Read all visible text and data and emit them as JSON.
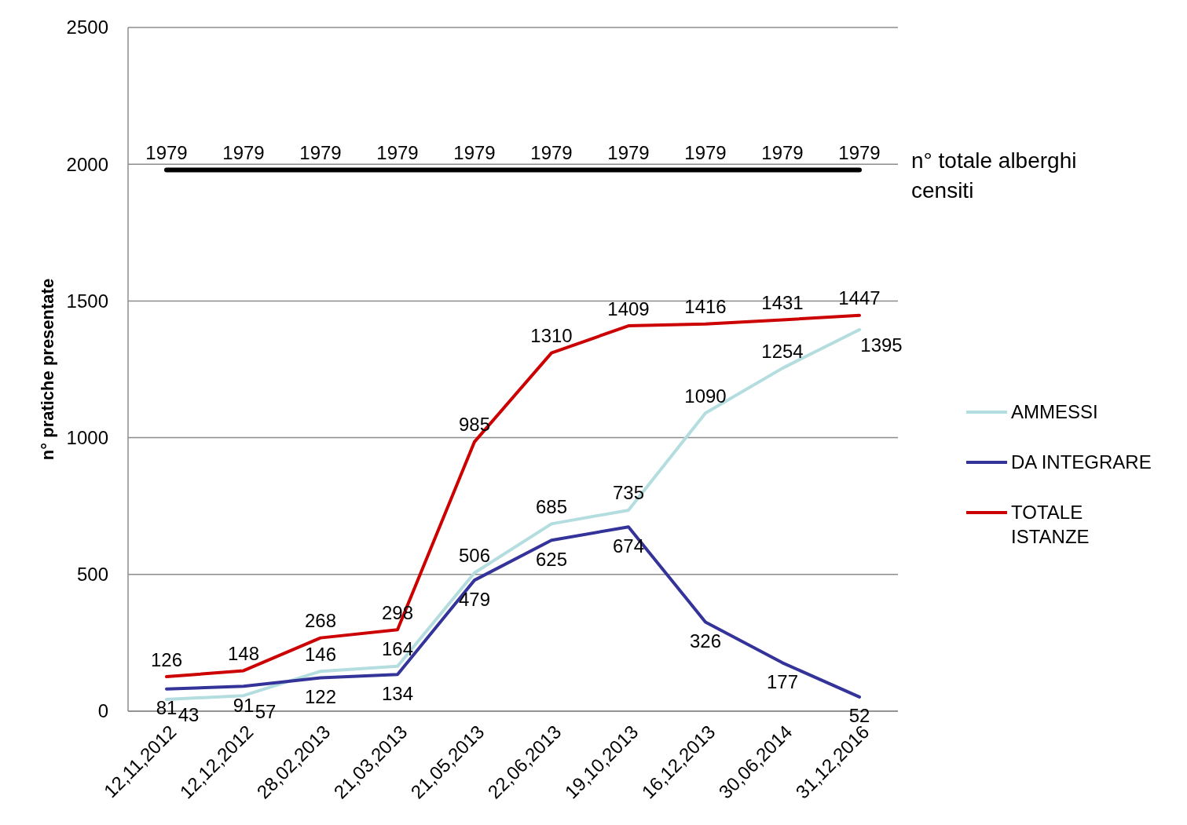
{
  "chart_data": {
    "type": "line",
    "ylabel": "n° pratiche presentate",
    "categories": [
      "12,11,2012",
      "12,12,2012",
      "28,02,2013",
      "21,03,2013",
      "21,05,2013",
      "22,06,2013",
      "19,10,2013",
      "16,12,2013",
      "30,06,2014",
      "31,12,2016"
    ],
    "series": [
      {
        "name": "n° totale alberghi censiti",
        "color": "#000000",
        "values": [
          1979,
          1979,
          1979,
          1979,
          1979,
          1979,
          1979,
          1979,
          1979,
          1979
        ]
      },
      {
        "name": "AMMESSI",
        "color": "#b4dde0",
        "values": [
          43,
          57,
          146,
          164,
          506,
          685,
          735,
          1090,
          1254,
          1395
        ]
      },
      {
        "name": "DA INTEGRARE",
        "color": "#333399",
        "values": [
          81,
          91,
          122,
          134,
          479,
          625,
          674,
          326,
          177,
          52
        ]
      },
      {
        "name": "TOTALE ISTANZE",
        "color": "#cc0000",
        "values": [
          126,
          148,
          268,
          298,
          985,
          1310,
          1409,
          1416,
          1431,
          1447
        ]
      }
    ],
    "ylim": [
      0,
      2500
    ],
    "yticks": [
      0,
      500,
      1000,
      1500,
      2000,
      2500
    ],
    "grid": "y",
    "legend": "right",
    "data_labels": true
  }
}
